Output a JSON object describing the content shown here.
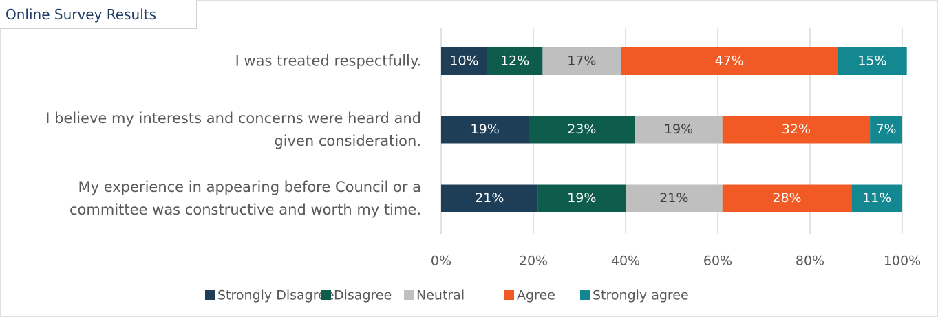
{
  "chart_data": {
    "type": "stacked_barh",
    "title": "Online Survey Results",
    "categories": [
      "I was treated respectfully.",
      "I believe my interests and concerns were heard and given consideration.",
      "My experience in appearing before Council or a committee was constructive and worth my time."
    ],
    "series": [
      {
        "name": "Strongly Disagree",
        "color": "#1e3d56",
        "values": [
          10,
          19,
          21
        ],
        "value_labels": [
          "10%",
          "19%",
          "21%"
        ]
      },
      {
        "name": "Disagree",
        "color": "#0e5c4b",
        "values": [
          12,
          23,
          19
        ],
        "value_labels": [
          "12%",
          "23%",
          "19%"
        ]
      },
      {
        "name": "Neutral",
        "color": "#bfbfbf",
        "values": [
          17,
          19,
          21
        ],
        "value_labels": [
          "17%",
          "19%",
          "21%"
        ]
      },
      {
        "name": "Agree",
        "color": "#f15a24",
        "values": [
          47,
          32,
          28
        ],
        "value_labels": [
          "47%",
          "32%",
          "28%"
        ]
      },
      {
        "name": "Strongly agree",
        "color": "#148891",
        "values": [
          15,
          7,
          11
        ],
        "value_labels": [
          "15%",
          "7%",
          "11%"
        ]
      }
    ],
    "xlim": [
      0,
      100
    ],
    "xticks": [
      {
        "value": 0,
        "label": "0%"
      },
      {
        "value": 20,
        "label": "20%"
      },
      {
        "value": 40,
        "label": "40%"
      },
      {
        "value": 60,
        "label": "60%"
      },
      {
        "value": 80,
        "label": "80%"
      },
      {
        "value": 100,
        "label": "100%"
      }
    ],
    "grid": true,
    "legend": "bottom"
  }
}
